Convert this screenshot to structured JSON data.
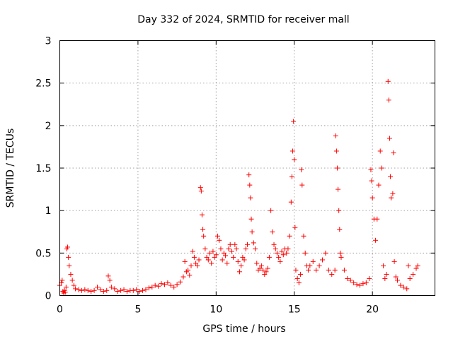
{
  "chart_data": {
    "type": "scatter",
    "title": "Day 332 of 2024, SRMTID for receiver mall",
    "xlabel": "GPS time / hours",
    "ylabel": "SRMTID / TECUs",
    "xlim": [
      0,
      24
    ],
    "ylim": [
      0,
      3
    ],
    "xticks": [
      0,
      5,
      10,
      15,
      20
    ],
    "yticks": [
      0,
      0.5,
      1,
      1.5,
      2,
      2.5,
      3
    ],
    "xtick_labels": [
      "0",
      "5",
      "10",
      "15",
      "20"
    ],
    "ytick_labels": [
      "0",
      "0.5",
      "1",
      "1.5",
      "2",
      "2.5",
      "3"
    ],
    "grid": true,
    "marker": "plus",
    "color": "#ff0000",
    "series": [
      {
        "name": "SRMTID",
        "points": [
          [
            0.0,
            0.12
          ],
          [
            0.1,
            0.15
          ],
          [
            0.15,
            0.18
          ],
          [
            0.2,
            0.05
          ],
          [
            0.25,
            0.03
          ],
          [
            0.3,
            0.06
          ],
          [
            0.35,
            0.04
          ],
          [
            0.4,
            0.1
          ],
          [
            0.45,
            0.55
          ],
          [
            0.5,
            0.57
          ],
          [
            0.55,
            0.45
          ],
          [
            0.6,
            0.35
          ],
          [
            0.7,
            0.25
          ],
          [
            0.8,
            0.18
          ],
          [
            0.9,
            0.12
          ],
          [
            1.0,
            0.08
          ],
          [
            1.2,
            0.07
          ],
          [
            1.4,
            0.06
          ],
          [
            1.6,
            0.07
          ],
          [
            1.8,
            0.06
          ],
          [
            2.0,
            0.05
          ],
          [
            2.2,
            0.06
          ],
          [
            2.4,
            0.1
          ],
          [
            2.6,
            0.07
          ],
          [
            2.8,
            0.05
          ],
          [
            3.0,
            0.06
          ],
          [
            3.1,
            0.23
          ],
          [
            3.2,
            0.18
          ],
          [
            3.3,
            0.1
          ],
          [
            3.5,
            0.08
          ],
          [
            3.7,
            0.05
          ],
          [
            3.9,
            0.06
          ],
          [
            4.1,
            0.07
          ],
          [
            4.3,
            0.05
          ],
          [
            4.5,
            0.06
          ],
          [
            4.7,
            0.06
          ],
          [
            4.9,
            0.07
          ],
          [
            5.1,
            0.05
          ],
          [
            5.3,
            0.06
          ],
          [
            5.5,
            0.07
          ],
          [
            5.7,
            0.09
          ],
          [
            5.9,
            0.1
          ],
          [
            6.1,
            0.12
          ],
          [
            6.3,
            0.11
          ],
          [
            6.5,
            0.14
          ],
          [
            6.7,
            0.13
          ],
          [
            6.9,
            0.15
          ],
          [
            7.1,
            0.12
          ],
          [
            7.3,
            0.1
          ],
          [
            7.5,
            0.13
          ],
          [
            7.7,
            0.16
          ],
          [
            7.9,
            0.22
          ],
          [
            8.0,
            0.4
          ],
          [
            8.1,
            0.28
          ],
          [
            8.2,
            0.3
          ],
          [
            8.3,
            0.24
          ],
          [
            8.4,
            0.35
          ],
          [
            8.5,
            0.52
          ],
          [
            8.6,
            0.45
          ],
          [
            8.7,
            0.38
          ],
          [
            8.8,
            0.35
          ],
          [
            8.9,
            0.42
          ],
          [
            9.0,
            1.27
          ],
          [
            9.05,
            1.23
          ],
          [
            9.1,
            0.95
          ],
          [
            9.15,
            0.78
          ],
          [
            9.2,
            0.7
          ],
          [
            9.3,
            0.55
          ],
          [
            9.4,
            0.45
          ],
          [
            9.5,
            0.42
          ],
          [
            9.6,
            0.5
          ],
          [
            9.7,
            0.38
          ],
          [
            9.8,
            0.52
          ],
          [
            9.9,
            0.45
          ],
          [
            10.0,
            0.48
          ],
          [
            10.1,
            0.7
          ],
          [
            10.2,
            0.65
          ],
          [
            10.3,
            0.55
          ],
          [
            10.4,
            0.42
          ],
          [
            10.5,
            0.5
          ],
          [
            10.6,
            0.47
          ],
          [
            10.7,
            0.38
          ],
          [
            10.8,
            0.55
          ],
          [
            10.9,
            0.6
          ],
          [
            11.0,
            0.52
          ],
          [
            11.1,
            0.45
          ],
          [
            11.2,
            0.6
          ],
          [
            11.3,
            0.55
          ],
          [
            11.4,
            0.4
          ],
          [
            11.5,
            0.28
          ],
          [
            11.6,
            0.35
          ],
          [
            11.7,
            0.45
          ],
          [
            11.8,
            0.42
          ],
          [
            11.9,
            0.55
          ],
          [
            12.0,
            0.6
          ],
          [
            12.1,
            1.42
          ],
          [
            12.15,
            1.3
          ],
          [
            12.2,
            1.15
          ],
          [
            12.25,
            0.9
          ],
          [
            12.3,
            0.75
          ],
          [
            12.4,
            0.62
          ],
          [
            12.5,
            0.55
          ],
          [
            12.6,
            0.38
          ],
          [
            12.7,
            0.3
          ],
          [
            12.8,
            0.32
          ],
          [
            12.9,
            0.35
          ],
          [
            13.0,
            0.3
          ],
          [
            13.1,
            0.25
          ],
          [
            13.2,
            0.28
          ],
          [
            13.3,
            0.32
          ],
          [
            13.4,
            0.45
          ],
          [
            13.5,
            1.0
          ],
          [
            13.6,
            0.75
          ],
          [
            13.7,
            0.6
          ],
          [
            13.8,
            0.55
          ],
          [
            13.9,
            0.5
          ],
          [
            14.0,
            0.45
          ],
          [
            14.1,
            0.4
          ],
          [
            14.2,
            0.52
          ],
          [
            14.3,
            0.48
          ],
          [
            14.4,
            0.55
          ],
          [
            14.5,
            0.5
          ],
          [
            14.6,
            0.55
          ],
          [
            14.7,
            0.7
          ],
          [
            14.8,
            1.1
          ],
          [
            14.85,
            1.4
          ],
          [
            14.9,
            1.7
          ],
          [
            14.95,
            2.05
          ],
          [
            15.0,
            1.6
          ],
          [
            15.05,
            0.8
          ],
          [
            15.1,
            0.3
          ],
          [
            15.2,
            0.2
          ],
          [
            15.3,
            0.15
          ],
          [
            15.4,
            0.25
          ],
          [
            15.45,
            1.48
          ],
          [
            15.5,
            1.3
          ],
          [
            15.6,
            0.7
          ],
          [
            15.7,
            0.5
          ],
          [
            15.8,
            0.35
          ],
          [
            15.9,
            0.3
          ],
          [
            16.0,
            0.35
          ],
          [
            16.2,
            0.4
          ],
          [
            16.4,
            0.3
          ],
          [
            16.6,
            0.35
          ],
          [
            16.8,
            0.42
          ],
          [
            17.0,
            0.5
          ],
          [
            17.2,
            0.3
          ],
          [
            17.4,
            0.25
          ],
          [
            17.6,
            0.3
          ],
          [
            17.65,
            1.88
          ],
          [
            17.7,
            1.7
          ],
          [
            17.75,
            1.5
          ],
          [
            17.8,
            1.25
          ],
          [
            17.85,
            1.0
          ],
          [
            17.9,
            0.78
          ],
          [
            17.95,
            0.5
          ],
          [
            18.0,
            0.45
          ],
          [
            18.2,
            0.3
          ],
          [
            18.4,
            0.2
          ],
          [
            18.6,
            0.18
          ],
          [
            18.8,
            0.15
          ],
          [
            19.0,
            0.13
          ],
          [
            19.2,
            0.12
          ],
          [
            19.4,
            0.14
          ],
          [
            19.6,
            0.15
          ],
          [
            19.8,
            0.2
          ],
          [
            19.9,
            1.48
          ],
          [
            19.95,
            1.35
          ],
          [
            20.0,
            1.15
          ],
          [
            20.1,
            0.9
          ],
          [
            20.2,
            0.65
          ],
          [
            20.3,
            0.9
          ],
          [
            20.4,
            1.3
          ],
          [
            20.5,
            1.7
          ],
          [
            20.6,
            1.5
          ],
          [
            20.7,
            0.35
          ],
          [
            20.8,
            0.2
          ],
          [
            20.9,
            0.25
          ],
          [
            21.0,
            2.52
          ],
          [
            21.05,
            2.3
          ],
          [
            21.1,
            1.85
          ],
          [
            21.15,
            1.4
          ],
          [
            21.2,
            1.15
          ],
          [
            21.3,
            1.2
          ],
          [
            21.35,
            1.68
          ],
          [
            21.4,
            0.4
          ],
          [
            21.5,
            0.22
          ],
          [
            21.6,
            0.18
          ],
          [
            21.8,
            0.12
          ],
          [
            22.0,
            0.1
          ],
          [
            22.2,
            0.08
          ],
          [
            22.3,
            0.35
          ],
          [
            22.4,
            0.2
          ],
          [
            22.6,
            0.25
          ],
          [
            22.8,
            0.32
          ],
          [
            22.9,
            0.35
          ]
        ]
      }
    ]
  }
}
